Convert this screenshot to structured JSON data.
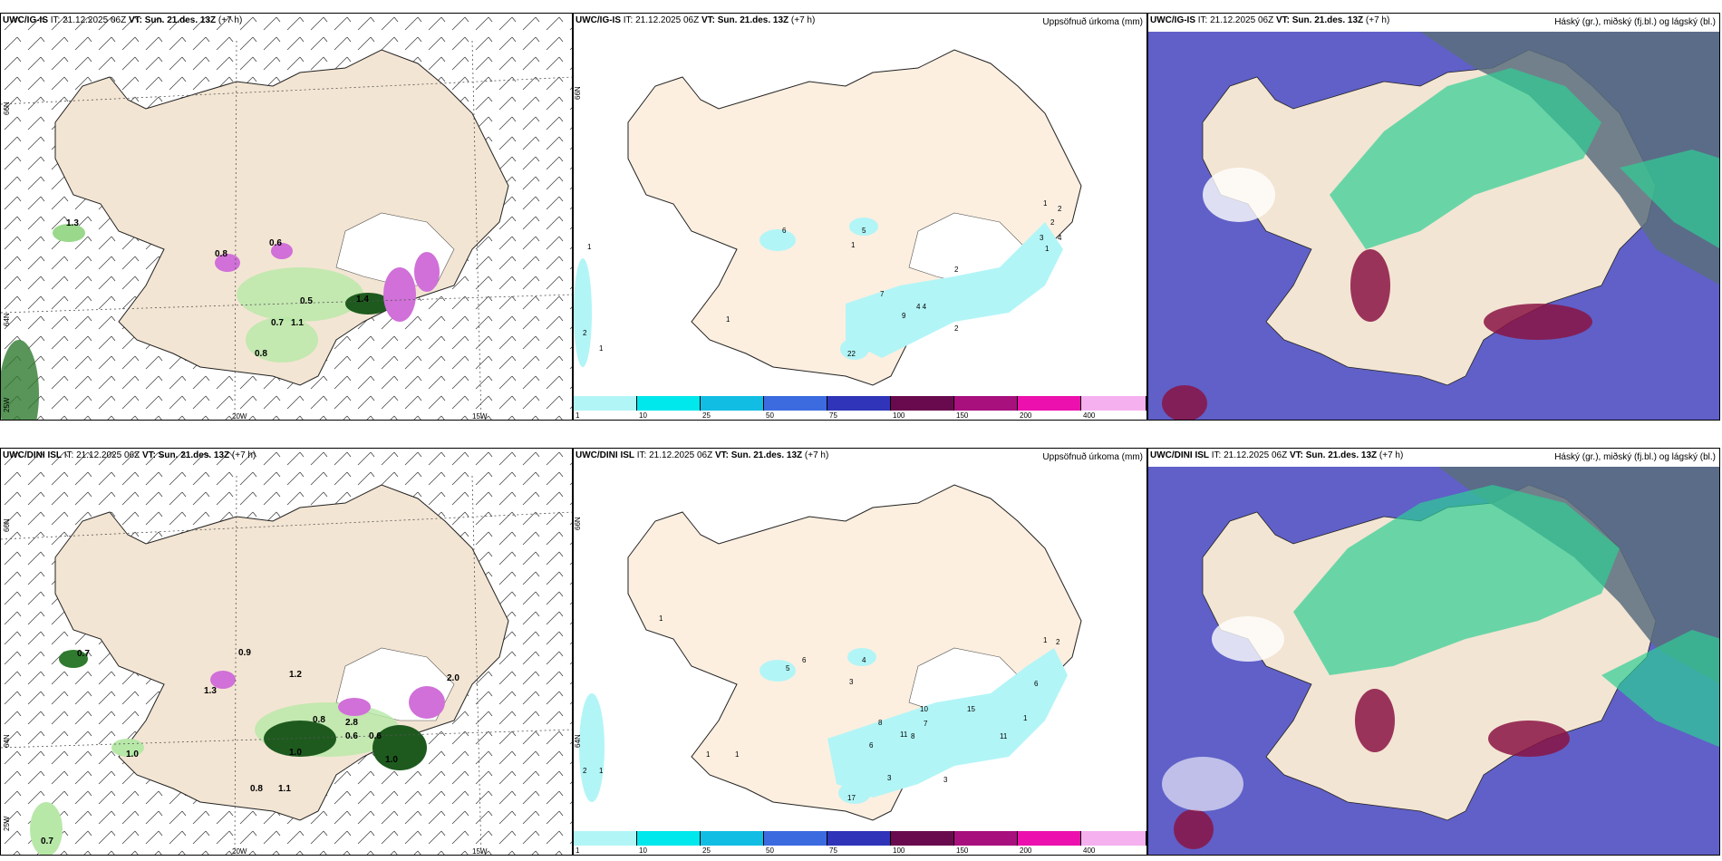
{
  "panels": [
    {
      "id": "top-left",
      "model": "UWC/IG-IS",
      "it_label": "IT:",
      "it_value": "21.12.2025 06Z",
      "vt_label": "VT:",
      "vt_value": "Sun. 21.des. 13Z",
      "lead": "(+7 h)",
      "right_title": "",
      "lat_labels": [
        "66N",
        "64N",
        "25W"
      ],
      "lon_labels": [
        "20W",
        "15W"
      ],
      "values": [
        "1.3",
        "0.8",
        "0.6",
        "0.5",
        "0.7",
        "1.1",
        "0.8",
        "1.4"
      ]
    },
    {
      "id": "top-middle",
      "model": "UWC/IG-IS",
      "it_label": "IT:",
      "it_value": "21.12.2025 06Z",
      "vt_label": "VT:",
      "vt_value": "Sun. 21.des. 13Z",
      "lead": "(+7 h)",
      "right_title": "Uppsöfnuð úrkoma (mm)",
      "lat_labels": [
        "66N"
      ],
      "values": [
        "1",
        "2",
        "1",
        "1",
        "6",
        "5",
        "1",
        "7",
        "9",
        "4 4",
        "2",
        "2",
        "1",
        "2",
        "2",
        "3",
        "4",
        "1",
        "22"
      ]
    },
    {
      "id": "top-right",
      "model": "UWC/IG-IS",
      "it_label": "IT:",
      "it_value": "21.12.2025 06Z",
      "vt_label": "VT:",
      "vt_value": "Sun. 21.des. 13Z",
      "lead": "(+7 h)",
      "right_title": "Háský (gr.), miðský (fj.bl.) og lágský (bl.)"
    },
    {
      "id": "bottom-left",
      "model": "UWC/DINI ISL",
      "it_label": "IT:",
      "it_value": "21.12.2025 06Z",
      "vt_label": "VT:",
      "vt_value": "Sun. 21.des. 13Z",
      "lead": "(+7 h)",
      "right_title": "",
      "lat_labels": [
        "66N",
        "64N",
        "25W"
      ],
      "lon_labels": [
        "20W",
        "15W"
      ],
      "values": [
        "0.7",
        "0.9",
        "1.3",
        "1.2",
        "0.8",
        "2.8",
        "0.6",
        "0.6",
        "1.0",
        "1.0",
        "1.0",
        "0.8",
        "1.1",
        "0.7",
        "2.0"
      ]
    },
    {
      "id": "bottom-middle",
      "model": "UWC/DINI ISL",
      "it_label": "IT:",
      "it_value": "21.12.2025 06Z",
      "vt_label": "VT:",
      "vt_value": "Sun. 21.des. 13Z",
      "lead": "(+7 h)",
      "right_title": "Uppsöfnuð úrkoma (mm)",
      "lat_labels": [
        "66N",
        "64N"
      ],
      "values": [
        "1",
        "1",
        "1",
        "2",
        "1",
        "5",
        "6",
        "4",
        "3",
        "8",
        "6",
        "10",
        "7",
        "11",
        "8",
        "15",
        "11",
        "1",
        "1",
        "2",
        "6",
        "3",
        "3",
        "17"
      ]
    },
    {
      "id": "bottom-right",
      "model": "UWC/DINI ISL",
      "it_label": "IT:",
      "it_value": "21.12.2025 06Z",
      "vt_label": "VT:",
      "vt_value": "Sun. 21.des. 13Z",
      "lead": "(+7 h)",
      "right_title": "Háský (gr.), miðský (fj.bl.) og lágský (bl.)"
    }
  ],
  "colorbar": {
    "labels": [
      "1",
      "10",
      "25",
      "50",
      "75",
      "100",
      "150",
      "200",
      "400"
    ],
    "colors": [
      "#b2f5f7",
      "#00e7ec",
      "#12bde3",
      "#3c6be0",
      "#3034b8",
      "#6a0a4e",
      "#a8107e",
      "#ec10ae",
      "#f5b0ef"
    ]
  },
  "colors": {
    "land": "#f3e5d3",
    "land_precip": "#fcefe0",
    "sea_white": "#ffffff",
    "cloud_low": "#6060c8",
    "cloud_mid": "#2ecf94",
    "cloud_high": "#5a6e7e",
    "precip_light_green": "#b7e8a8",
    "precip_dark_green": "#1e5a1e",
    "snow_pink": "#d070d8"
  }
}
